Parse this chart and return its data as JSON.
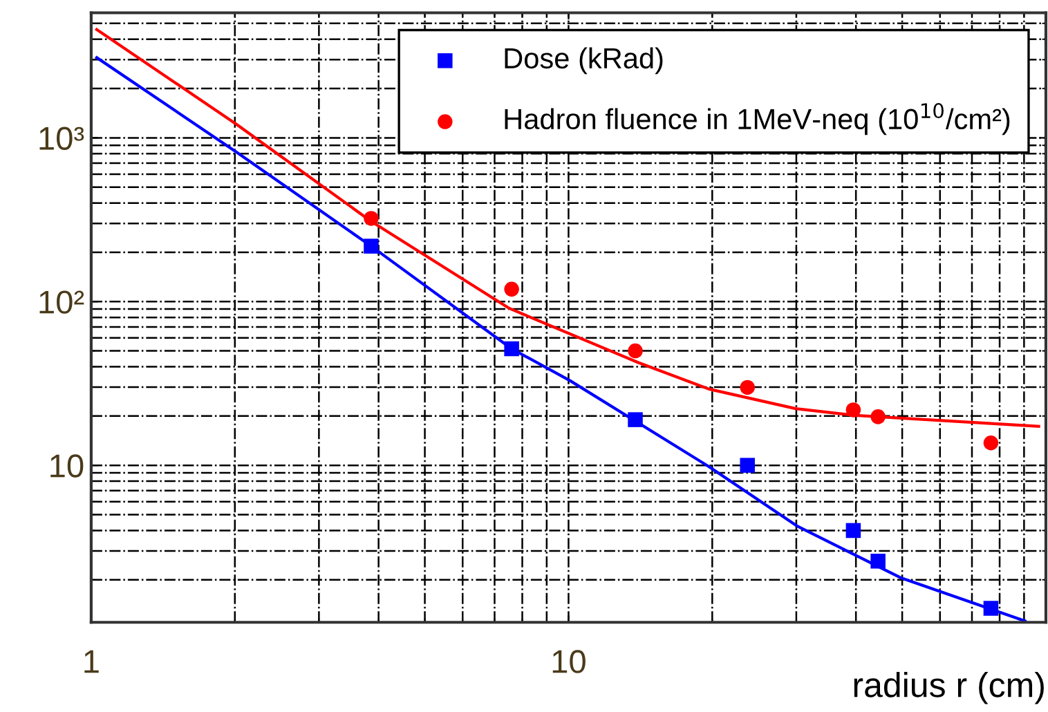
{
  "chart_data": {
    "type": "scatter",
    "xlabel": "radius r (cm)",
    "log": "xy",
    "grid": true,
    "legend": "top right",
    "xlim": [
      1,
      100
    ],
    "ylim": [
      1.1,
      5800
    ],
    "xticks": [
      1,
      10
    ],
    "yticks": [
      10,
      {
        "value": 100,
        "label": "10²"
      },
      {
        "value": 1000,
        "label": "10³"
      }
    ],
    "series": [
      {
        "name": "Dose (kRad)",
        "marker": "square",
        "color": "#0000ff",
        "x": [
          3.86,
          7.6,
          13.8,
          23.7,
          39.5,
          44.5,
          76.7
        ],
        "values": [
          218,
          51.5,
          19,
          10,
          4.0,
          2.6,
          1.34
        ]
      },
      {
        "name": "Hadron fluence in 1MeV-neq (10$^{10}$/cm²)",
        "marker": "circle",
        "color": "#ff0000",
        "x": [
          3.86,
          7.6,
          13.8,
          23.7,
          39.5,
          44.5,
          76.7
        ],
        "values": [
          322,
          119,
          50,
          29.9,
          21.8,
          19.8,
          13.7
        ]
      },
      {
        "type": "line",
        "marker": "none",
        "color": "#0000ff",
        "x": [
          1.027,
          2.01,
          3.86,
          7.6,
          10.07,
          19.7,
          30.2,
          49.6,
          90.4
        ],
        "values": [
          3090,
          823,
          218,
          51.5,
          32.9,
          9.8,
          4.24,
          2.06,
          1.12
        ]
      },
      {
        "type": "line",
        "marker": "none",
        "color": "#ff0000",
        "x": [
          1.027,
          2.01,
          3.86,
          7.52,
          14.0,
          19.7,
          29.9,
          39.8,
          96.6
        ],
        "values": [
          4590,
          1216,
          309,
          90.8,
          42.4,
          29.2,
          22.2,
          20.2,
          17.3
        ]
      }
    ]
  }
}
